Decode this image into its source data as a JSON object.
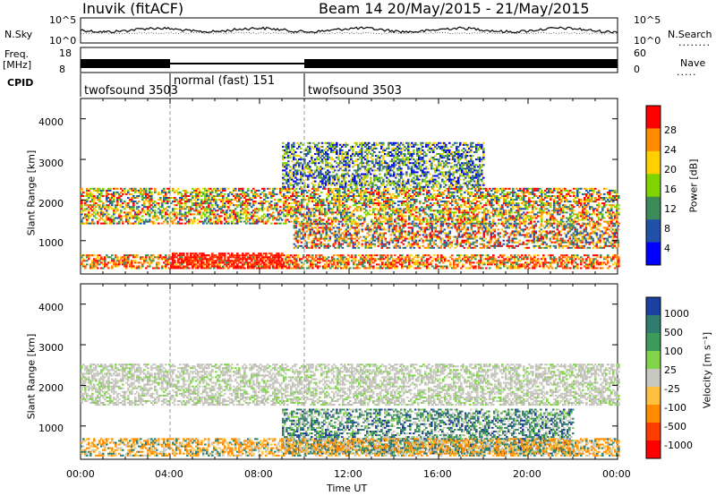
{
  "header": {
    "station": "Inuvik (fitACF)",
    "beam": "Beam 14 20/May/2015 - 21/May/2015"
  },
  "aux_panels": {
    "nsky_label": "N.Sky",
    "nsky_ticks": [
      "10^5",
      "10^0"
    ],
    "nsearch_label": "N.Search",
    "nsearch_ticks": [
      "10^5",
      "10^0"
    ],
    "freq_label_1": "Freq.",
    "freq_label_2": "[MHz]",
    "freq_ticks": [
      "18",
      "8"
    ],
    "nave_label": "Nave",
    "nave_ticks": [
      "60",
      "0"
    ],
    "cpid_label": "CPID",
    "cpid_segments": [
      {
        "label": "twofsound 3503",
        "start_h": 0,
        "end_h": 4
      },
      {
        "label": "normal (fast) 151",
        "start_h": 4,
        "end_h": 10
      },
      {
        "label": "twofsound 3503",
        "start_h": 10,
        "end_h": 24
      }
    ]
  },
  "chart_data": [
    {
      "type": "heatmap",
      "name": "Power",
      "ylabel": "Slant Range [km]",
      "ylim": [
        180,
        4500
      ],
      "y_ticks": [
        "1000",
        "2000",
        "3000",
        "4000"
      ],
      "xlim_hours": [
        0,
        24
      ],
      "colorbar_label": "Power [dB]",
      "colorbar_ticks": [
        "28",
        "24",
        "20",
        "16",
        "12",
        "8",
        "4"
      ],
      "colorbar_colors": [
        "#ff0000",
        "#ff8c00",
        "#ffd000",
        "#7fd400",
        "#3c8c5a",
        "#2050a8",
        "#0000ff"
      ],
      "bands": [
        {
          "r0": 300,
          "r1": 650,
          "h0": 0,
          "h1": 24,
          "level": "high"
        },
        {
          "r0": 300,
          "r1": 700,
          "h0": 4,
          "h1": 9,
          "level": "max"
        },
        {
          "r0": 1400,
          "r1": 2300,
          "h0": 0,
          "h1": 24,
          "level": "mid"
        },
        {
          "r0": 800,
          "r1": 1400,
          "h0": 9.5,
          "h1": 24,
          "level": "mixed"
        },
        {
          "r0": 2300,
          "r1": 3400,
          "h0": 9,
          "h1": 18,
          "level": "low"
        }
      ]
    },
    {
      "type": "heatmap",
      "name": "Velocity",
      "ylabel": "Slant Range [km]",
      "ylim": [
        180,
        4500
      ],
      "y_ticks": [
        "1000",
        "2000",
        "3000",
        "4000"
      ],
      "xlim_hours": [
        0,
        24
      ],
      "xlabel": "Time UT",
      "x_ticks": [
        "00:00",
        "04:00",
        "08:00",
        "12:00",
        "16:00",
        "20:00",
        "00:00"
      ],
      "colorbar_label": "Velocity [m s⁻¹]",
      "colorbar_ticks": [
        "1000",
        "500",
        "100",
        "25",
        "-25",
        "-100",
        "-500",
        "-1000"
      ],
      "colorbar_colors": [
        "#1a3fa0",
        "#2e7d6e",
        "#3c9a5a",
        "#7fd44a",
        "#c8c8c0",
        "#ffc040",
        "#ff8c00",
        "#ff3c00",
        "#ff0000"
      ],
      "bands": [
        {
          "r0": 1500,
          "r1": 2500,
          "h0": 0,
          "h1": 24,
          "level": "ground"
        },
        {
          "r0": 300,
          "r1": 1400,
          "h0": 9,
          "h1": 22,
          "level": "positive"
        },
        {
          "r0": 250,
          "r1": 700,
          "h0": 0,
          "h1": 24,
          "level": "negative"
        }
      ]
    }
  ]
}
